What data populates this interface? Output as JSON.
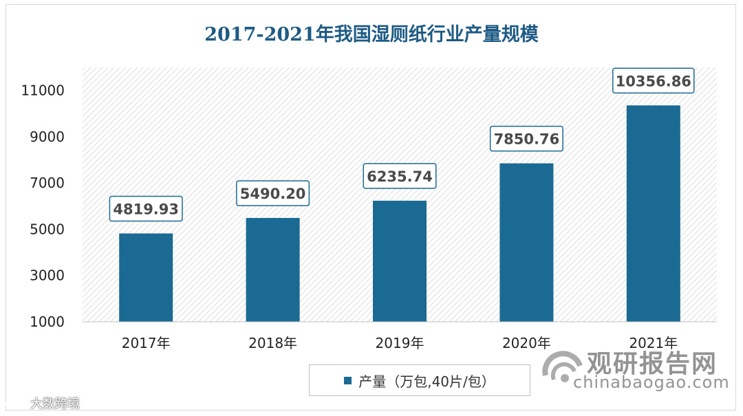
{
  "chart_data": {
    "type": "bar",
    "title": "2017-2021年我国湿厕纸行业产量规模",
    "categories": [
      "2017年",
      "2018年",
      "2019年",
      "2020年",
      "2021年"
    ],
    "series": [
      {
        "name": "产量（万包,40片/包）",
        "values": [
          4819.93,
          5490.2,
          6235.74,
          7850.76,
          10356.86
        ]
      }
    ],
    "data_labels": [
      "4819.93",
      "5490.20",
      "6235.74",
      "7850.76",
      "10356.86"
    ],
    "ylim": [
      1000,
      12000
    ],
    "yticks": [
      1000,
      3000,
      5000,
      7000,
      9000,
      11000
    ],
    "grid": false,
    "legend_position": "bottom",
    "colors": {
      "bar": "#1a6a94",
      "title": "#1d5a84",
      "label_border": "#1a6a94"
    }
  },
  "watermark": {
    "brand": "观研报告网",
    "url": "chinabaogao.com",
    "social": "大数跨境"
  }
}
